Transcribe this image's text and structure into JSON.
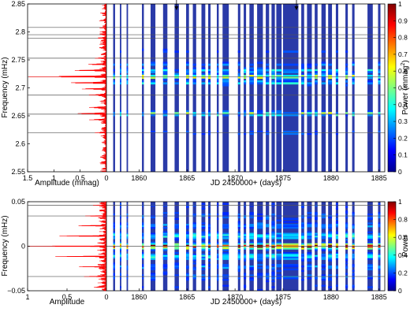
{
  "chart_data": [
    {
      "type": "line",
      "panel": "top-left",
      "xlabel": "Amplitude (mmag)",
      "ylabel": "Frequency (mHz)",
      "xlim": [
        1.5,
        0
      ],
      "ylim": [
        2.55,
        2.85
      ],
      "xticks": [
        "1.5",
        "1",
        "0.5",
        "0"
      ],
      "yticks": [
        "2.55",
        "2.6",
        "2.65",
        "2.7",
        "2.75",
        "2.8",
        "2.85"
      ],
      "series": [
        {
          "values": "amplitude spectrum",
          "color": "#ff0000",
          "peaks": [
            {
              "y": 2.72,
              "x": 1.42
            },
            {
              "y": 2.731,
              "x": 0.6
            },
            {
              "y": 2.709,
              "x": 0.62
            },
            {
              "y": 2.742,
              "x": 0.35
            },
            {
              "y": 2.698,
              "x": 0.38
            },
            {
              "y": 2.753,
              "x": 0.2
            },
            {
              "y": 2.687,
              "x": 0.22
            },
            {
              "y": 2.654,
              "x": 0.55
            },
            {
              "y": 2.643,
              "x": 0.3
            },
            {
              "y": 2.665,
              "x": 0.28
            },
            {
              "y": 2.62,
              "x": 0.2
            },
            {
              "y": 2.789,
              "x": 0.15
            },
            {
              "y": 2.8,
              "x": 0.12
            },
            {
              "y": 2.778,
              "x": 0.12
            }
          ]
        }
      ],
      "hlines": [
        2.62,
        2.653,
        2.687,
        2.72,
        2.753,
        2.789,
        2.795,
        2.808
      ]
    },
    {
      "type": "heatmap",
      "panel": "top-right",
      "xlabel": "JD 2450000+ (days)",
      "ylabel": "",
      "xlim": [
        1856.6,
        1885.6
      ],
      "ylim": [
        2.55,
        2.85
      ],
      "xticks": [
        "1860",
        "1865",
        "1870",
        "1875",
        "1880",
        "1885"
      ],
      "colorbar": {
        "label": "Power (mmag",
        "label_sup": "2",
        "label_end": ")",
        "range": [
          0,
          1
        ],
        "ticks": [
          "0",
          "0.1",
          "0.2",
          "0.3",
          "0.4",
          "0.5",
          "0.6",
          "0.7",
          "0.8",
          "0.9",
          "1"
        ]
      },
      "arrows_at_jd": [
        1863.9,
        1876.4
      ],
      "hot_frequencies": [
        2.72,
        2.654,
        2.731,
        2.709
      ]
    },
    {
      "type": "line",
      "panel": "bottom-left",
      "xlabel": "Amplitude",
      "ylabel": "Frequency (mHz)",
      "xlim": [
        1,
        0
      ],
      "ylim": [
        -0.05,
        0.05
      ],
      "xticks": [
        "1",
        "0.5",
        "0"
      ],
      "yticks": [
        "−0.05",
        "0",
        "0.05"
      ],
      "series": [
        {
          "values": "spectral window",
          "color": "#ff0000",
          "peaks": [
            {
              "y": 0.0,
              "x": 1.0
            },
            {
              "y": 0.0115,
              "x": 0.62
            },
            {
              "y": -0.0115,
              "x": 0.62
            },
            {
              "y": 0.023,
              "x": 0.35
            },
            {
              "y": -0.023,
              "x": 0.35
            },
            {
              "y": 0.034,
              "x": 0.25
            },
            {
              "y": -0.034,
              "x": 0.25
            },
            {
              "y": 0.046,
              "x": 0.15
            },
            {
              "y": -0.046,
              "x": 0.15
            }
          ]
        }
      ],
      "hlines": [
        -0.034,
        0.0,
        0.034,
        0.046
      ]
    },
    {
      "type": "heatmap",
      "panel": "bottom-right",
      "xlabel": "JD 2450000+ (days)",
      "ylabel": "",
      "xlim": [
        1856.6,
        1885.6
      ],
      "ylim": [
        -0.05,
        0.05
      ],
      "xticks": [
        "1860",
        "1865",
        "1870",
        "1875",
        "1880",
        "1885"
      ],
      "colorbar": {
        "label": "Power",
        "range": [
          0,
          1
        ],
        "ticks": [
          "0",
          "0.2",
          "0.4",
          "0.6",
          "0.8",
          "1"
        ]
      }
    }
  ],
  "observation_nights_jd": [
    [
      1857.3,
      1857.5
    ],
    [
      1858.0,
      1858.15
    ],
    [
      1858.7,
      1858.85
    ],
    [
      1860.3,
      1860.5
    ],
    [
      1861.2,
      1861.7
    ],
    [
      1862.5,
      1862.95
    ],
    [
      1863.7,
      1864.15
    ],
    [
      1864.9,
      1865.2
    ],
    [
      1865.6,
      1865.95
    ],
    [
      1866.5,
      1866.9
    ],
    [
      1867.2,
      1867.45
    ],
    [
      1868.1,
      1868.3
    ],
    [
      1868.7,
      1869.35
    ],
    [
      1870.3,
      1870.55
    ],
    [
      1870.9,
      1871.15
    ],
    [
      1871.5,
      1871.95
    ],
    [
      1872.3,
      1872.9
    ],
    [
      1873.2,
      1873.55
    ],
    [
      1873.8,
      1874.15
    ],
    [
      1874.3,
      1874.85
    ],
    [
      1875.0,
      1876.6
    ],
    [
      1876.9,
      1877.2
    ],
    [
      1877.5,
      1878.0
    ],
    [
      1878.3,
      1878.6
    ],
    [
      1879.0,
      1879.45
    ],
    [
      1879.7,
      1880.1
    ],
    [
      1880.5,
      1880.75
    ],
    [
      1881.5,
      1881.75
    ],
    [
      1882.2,
      1882.45
    ],
    [
      1883.8,
      1884.35
    ],
    [
      1884.9,
      1885.15
    ]
  ]
}
